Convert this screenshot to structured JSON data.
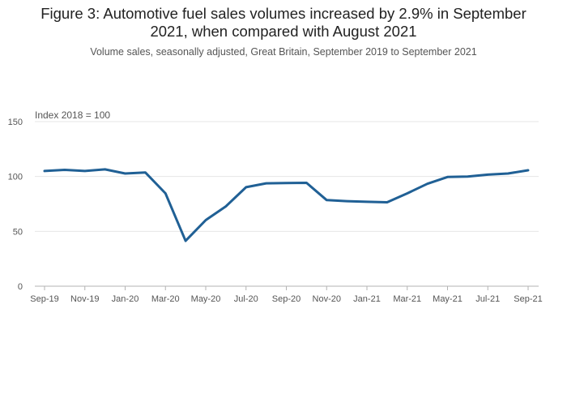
{
  "title_line1": "Figure 3: Automotive fuel sales volumes increased by 2.9% in September",
  "title_line2": "2021, when compared with August 2021",
  "subtitle": "Volume sales, seasonally adjusted, Great Britain, September 2019 to September 2021",
  "colors": {
    "line": "#206095",
    "grid": "#e6e6e6",
    "axis": "#b3b3b3",
    "text": "#555555"
  },
  "chart_data": {
    "type": "line",
    "title": "Figure 3: Automotive fuel sales volumes increased by 2.9% in September 2021, when compared with August 2021",
    "subtitle": "Volume sales, seasonally adjusted, Great Britain, September 2019 to September 2021",
    "ylabel": "Index 2018 = 100",
    "xlabel": "",
    "ylim": [
      0,
      150
    ],
    "yticks": [
      0,
      50,
      100,
      150
    ],
    "x": [
      "Sep-19",
      "Oct-19",
      "Nov-19",
      "Dec-19",
      "Jan-20",
      "Feb-20",
      "Mar-20",
      "Apr-20",
      "May-20",
      "Jun-20",
      "Jul-20",
      "Aug-20",
      "Sep-20",
      "Oct-20",
      "Nov-20",
      "Dec-20",
      "Jan-21",
      "Feb-21",
      "Mar-21",
      "Apr-21",
      "May-21",
      "Jun-21",
      "Jul-21",
      "Aug-21",
      "Sep-21"
    ],
    "xtick_labels": [
      "Sep-19",
      "Nov-19",
      "Jan-20",
      "Mar-20",
      "May-20",
      "Jul-20",
      "Sep-20",
      "Nov-20",
      "Jan-21",
      "Mar-21",
      "May-21",
      "Jul-21",
      "Sep-21"
    ],
    "series": [
      {
        "name": "Automotive fuel",
        "values": [
          105.0,
          106.0,
          105.0,
          106.5,
          102.7,
          103.7,
          84.6,
          41.3,
          60.2,
          72.8,
          90.2,
          93.8,
          94.0,
          94.2,
          78.5,
          77.5,
          76.9,
          76.5,
          84.6,
          93.3,
          99.5,
          100.0,
          101.7,
          102.7,
          105.7
        ]
      }
    ],
    "grid": true,
    "legend": "none"
  }
}
